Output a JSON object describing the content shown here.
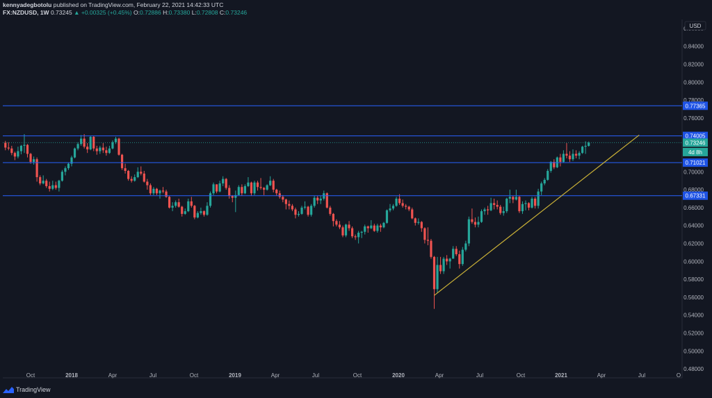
{
  "header": {
    "author": "kennyadegbotolu",
    "published": "published on TradingView.com, February 22, 2021 14:42:33 UTC",
    "symbol": "FX:NZDUSD, 1W",
    "last": "0.73245",
    "change": "▲ +0.00325 (+0.45%)",
    "o_label": "O:",
    "o": "0.72886",
    "h_label": "H:",
    "h": "0.73380",
    "l_label": "L:",
    "l": "0.72808",
    "c_label": "C:",
    "c": "0.73246"
  },
  "footer": {
    "brand": "TradingView"
  },
  "chart_data": {
    "type": "candlestick",
    "currency": "USD",
    "ylim": [
      0.47,
      0.87
    ],
    "y_ticks": [
      "0.48000",
      "0.50000",
      "0.52000",
      "0.54000",
      "0.56000",
      "0.58000",
      "0.60000",
      "0.62000",
      "0.64000",
      "0.66000",
      "0.68000",
      "0.70000",
      "0.72000",
      "0.74000",
      "0.76000",
      "0.78000",
      "0.80000",
      "0.82000",
      "0.84000",
      "0.86000"
    ],
    "x_ticks": [
      "Oct",
      "2018",
      "Apr",
      "Jul",
      "Oct",
      "2019",
      "Apr",
      "Jul",
      "Oct",
      "2020",
      "Apr",
      "Jul",
      "Oct",
      "2021",
      "Apr",
      "Jul",
      "O"
    ],
    "horizontal_levels": [
      "0.77365",
      "0.74005",
      "0.71021",
      "0.67331"
    ],
    "last_price_label": "0.73246",
    "countdown_label": "4d 8h",
    "trendline": {
      "from": [
        "2020-03-16",
        0.562
      ],
      "to": [
        "2021-06-14",
        0.741
      ]
    },
    "colors": {
      "up": "#26a69a",
      "down": "#ef5350",
      "level": "#2962ff",
      "trend": "#c9b037",
      "background": "#131722"
    },
    "candles": [
      [
        "2017-08-07",
        0.7325,
        0.7345,
        0.724,
        0.727
      ],
      [
        "2017-08-14",
        0.727,
        0.733,
        0.724,
        0.726
      ],
      [
        "2017-08-21",
        0.726,
        0.729,
        0.7185,
        0.721
      ],
      [
        "2017-08-28",
        0.721,
        0.7225,
        0.713,
        0.717
      ],
      [
        "2017-09-04",
        0.717,
        0.728,
        0.715,
        0.723
      ],
      [
        "2017-09-11",
        0.723,
        0.73,
        0.7195,
        0.729
      ],
      [
        "2017-09-18",
        0.729,
        0.742,
        0.721,
        0.73
      ],
      [
        "2017-09-25",
        0.73,
        0.731,
        0.716,
        0.72
      ],
      [
        "2017-10-02",
        0.72,
        0.721,
        0.709,
        0.711
      ],
      [
        "2017-10-09",
        0.711,
        0.717,
        0.708,
        0.714
      ],
      [
        "2017-10-16",
        0.714,
        0.716,
        0.689,
        0.694
      ],
      [
        "2017-10-23",
        0.694,
        0.696,
        0.685,
        0.687
      ],
      [
        "2017-10-30",
        0.687,
        0.696,
        0.686,
        0.69
      ],
      [
        "2017-11-06",
        0.69,
        0.692,
        0.682,
        0.684
      ],
      [
        "2017-11-13",
        0.684,
        0.689,
        0.678,
        0.681
      ],
      [
        "2017-11-20",
        0.681,
        0.69,
        0.6795,
        0.685
      ],
      [
        "2017-11-27",
        0.685,
        0.689,
        0.68,
        0.682
      ],
      [
        "2017-12-04",
        0.682,
        0.691,
        0.678,
        0.69
      ],
      [
        "2017-12-11",
        0.69,
        0.702,
        0.689,
        0.7
      ],
      [
        "2017-12-18",
        0.7,
        0.706,
        0.696,
        0.704
      ],
      [
        "2017-12-25",
        0.704,
        0.71,
        0.702,
        0.709
      ],
      [
        "2018-01-01",
        0.709,
        0.718,
        0.706,
        0.716
      ],
      [
        "2018-01-08",
        0.716,
        0.727,
        0.715,
        0.726
      ],
      [
        "2018-01-15",
        0.726,
        0.733,
        0.724,
        0.731
      ],
      [
        "2018-01-22",
        0.731,
        0.741,
        0.729,
        0.737
      ],
      [
        "2018-01-29",
        0.737,
        0.742,
        0.726,
        0.728
      ],
      [
        "2018-02-05",
        0.728,
        0.732,
        0.721,
        0.725
      ],
      [
        "2018-02-12",
        0.725,
        0.74,
        0.724,
        0.739
      ],
      [
        "2018-02-19",
        0.739,
        0.74,
        0.723,
        0.726
      ],
      [
        "2018-02-26",
        0.726,
        0.729,
        0.719,
        0.723
      ],
      [
        "2018-03-05",
        0.723,
        0.729,
        0.72,
        0.727
      ],
      [
        "2018-03-12",
        0.727,
        0.732,
        0.721,
        0.724
      ],
      [
        "2018-03-19",
        0.724,
        0.728,
        0.718,
        0.721
      ],
      [
        "2018-03-26",
        0.721,
        0.729,
        0.72,
        0.726
      ],
      [
        "2018-04-02",
        0.726,
        0.735,
        0.725,
        0.733
      ],
      [
        "2018-04-09",
        0.733,
        0.739,
        0.731,
        0.737
      ],
      [
        "2018-04-16",
        0.737,
        0.738,
        0.718,
        0.719
      ],
      [
        "2018-04-23",
        0.719,
        0.72,
        0.702,
        0.704
      ],
      [
        "2018-04-30",
        0.704,
        0.709,
        0.698,
        0.701
      ],
      [
        "2018-05-07",
        0.701,
        0.702,
        0.69,
        0.692
      ],
      [
        "2018-05-14",
        0.692,
        0.695,
        0.688,
        0.69
      ],
      [
        "2018-05-21",
        0.69,
        0.697,
        0.689,
        0.694
      ],
      [
        "2018-05-28",
        0.694,
        0.705,
        0.693,
        0.7
      ],
      [
        "2018-06-04",
        0.7,
        0.706,
        0.696,
        0.698
      ],
      [
        "2018-06-11",
        0.698,
        0.701,
        0.688,
        0.689
      ],
      [
        "2018-06-18",
        0.689,
        0.692,
        0.68,
        0.685
      ],
      [
        "2018-06-25",
        0.685,
        0.687,
        0.674,
        0.676
      ],
      [
        "2018-07-02",
        0.676,
        0.683,
        0.674,
        0.681
      ],
      [
        "2018-07-09",
        0.681,
        0.682,
        0.674,
        0.676
      ],
      [
        "2018-07-16",
        0.676,
        0.68,
        0.67,
        0.679
      ],
      [
        "2018-07-23",
        0.679,
        0.683,
        0.676,
        0.678
      ],
      [
        "2018-07-30",
        0.678,
        0.68,
        0.671,
        0.672
      ],
      [
        "2018-08-06",
        0.672,
        0.673,
        0.659,
        0.66
      ],
      [
        "2018-08-13",
        0.66,
        0.666,
        0.656,
        0.662
      ],
      [
        "2018-08-20",
        0.662,
        0.668,
        0.66,
        0.666
      ],
      [
        "2018-08-27",
        0.666,
        0.67,
        0.66,
        0.661
      ],
      [
        "2018-09-03",
        0.661,
        0.662,
        0.65,
        0.653
      ],
      [
        "2018-09-10",
        0.653,
        0.659,
        0.652,
        0.656
      ],
      [
        "2018-09-17",
        0.656,
        0.67,
        0.655,
        0.667
      ],
      [
        "2018-09-24",
        0.667,
        0.672,
        0.66,
        0.662
      ],
      [
        "2018-10-01",
        0.662,
        0.663,
        0.647,
        0.649
      ],
      [
        "2018-10-08",
        0.649,
        0.656,
        0.648,
        0.654
      ],
      [
        "2018-10-15",
        0.654,
        0.66,
        0.652,
        0.656
      ],
      [
        "2018-10-22",
        0.656,
        0.657,
        0.65,
        0.652
      ],
      [
        "2018-10-29",
        0.652,
        0.666,
        0.651,
        0.662
      ],
      [
        "2018-11-05",
        0.662,
        0.678,
        0.66,
        0.676
      ],
      [
        "2018-11-12",
        0.676,
        0.688,
        0.674,
        0.686
      ],
      [
        "2018-11-19",
        0.686,
        0.686,
        0.676,
        0.678
      ],
      [
        "2018-11-26",
        0.678,
        0.69,
        0.677,
        0.687
      ],
      [
        "2018-12-03",
        0.687,
        0.695,
        0.684,
        0.692
      ],
      [
        "2018-12-10",
        0.692,
        0.693,
        0.68,
        0.682
      ],
      [
        "2018-12-17",
        0.682,
        0.685,
        0.67,
        0.673
      ],
      [
        "2018-12-24",
        0.673,
        0.674,
        0.666,
        0.671
      ],
      [
        "2018-12-31",
        0.671,
        0.679,
        0.655,
        0.674
      ],
      [
        "2019-01-07",
        0.674,
        0.685,
        0.674,
        0.683
      ],
      [
        "2019-01-14",
        0.683,
        0.686,
        0.673,
        0.676
      ],
      [
        "2019-01-21",
        0.676,
        0.686,
        0.675,
        0.684
      ],
      [
        "2019-01-28",
        0.684,
        0.694,
        0.683,
        0.688
      ],
      [
        "2019-02-04",
        0.688,
        0.689,
        0.673,
        0.676
      ],
      [
        "2019-02-11",
        0.676,
        0.69,
        0.674,
        0.688
      ],
      [
        "2019-02-18",
        0.688,
        0.69,
        0.679,
        0.683
      ],
      [
        "2019-02-25",
        0.683,
        0.693,
        0.68,
        0.682
      ],
      [
        "2019-03-04",
        0.682,
        0.683,
        0.674,
        0.68
      ],
      [
        "2019-03-11",
        0.68,
        0.686,
        0.679,
        0.685
      ],
      [
        "2019-03-18",
        0.685,
        0.695,
        0.684,
        0.69
      ],
      [
        "2019-03-25",
        0.69,
        0.692,
        0.677,
        0.68
      ],
      [
        "2019-04-01",
        0.68,
        0.681,
        0.673,
        0.676
      ],
      [
        "2019-04-08",
        0.676,
        0.679,
        0.67,
        0.672
      ],
      [
        "2019-04-15",
        0.672,
        0.674,
        0.666,
        0.669
      ],
      [
        "2019-04-22",
        0.669,
        0.67,
        0.658,
        0.664
      ],
      [
        "2019-04-29",
        0.664,
        0.668,
        0.658,
        0.662
      ],
      [
        "2019-05-06",
        0.662,
        0.664,
        0.656,
        0.658
      ],
      [
        "2019-05-13",
        0.658,
        0.66,
        0.648,
        0.652
      ],
      [
        "2019-05-20",
        0.652,
        0.656,
        0.65,
        0.653
      ],
      [
        "2019-05-27",
        0.653,
        0.662,
        0.652,
        0.66
      ],
      [
        "2019-06-03",
        0.66,
        0.667,
        0.658,
        0.661
      ],
      [
        "2019-06-10",
        0.661,
        0.662,
        0.65,
        0.652
      ],
      [
        "2019-06-17",
        0.652,
        0.664,
        0.65,
        0.662
      ],
      [
        "2019-06-24",
        0.662,
        0.673,
        0.66,
        0.671
      ],
      [
        "2019-07-01",
        0.671,
        0.673,
        0.664,
        0.668
      ],
      [
        "2019-07-08",
        0.668,
        0.673,
        0.664,
        0.67
      ],
      [
        "2019-07-15",
        0.67,
        0.679,
        0.668,
        0.676
      ],
      [
        "2019-07-22",
        0.676,
        0.677,
        0.659,
        0.66
      ],
      [
        "2019-07-29",
        0.66,
        0.662,
        0.651,
        0.653
      ],
      [
        "2019-08-05",
        0.653,
        0.654,
        0.639,
        0.645
      ],
      [
        "2019-08-12",
        0.645,
        0.647,
        0.639,
        0.641
      ],
      [
        "2019-08-19",
        0.641,
        0.645,
        0.636,
        0.638
      ],
      [
        "2019-08-26",
        0.638,
        0.64,
        0.627,
        0.629
      ],
      [
        "2019-09-02",
        0.629,
        0.642,
        0.627,
        0.641
      ],
      [
        "2019-09-09",
        0.641,
        0.645,
        0.634,
        0.637
      ],
      [
        "2019-09-16",
        0.637,
        0.639,
        0.626,
        0.628
      ],
      [
        "2019-09-23",
        0.628,
        0.63,
        0.624,
        0.627
      ],
      [
        "2019-09-30",
        0.627,
        0.634,
        0.62,
        0.632
      ],
      [
        "2019-10-07",
        0.632,
        0.634,
        0.626,
        0.633
      ],
      [
        "2019-10-14",
        0.633,
        0.641,
        0.63,
        0.639
      ],
      [
        "2019-10-21",
        0.639,
        0.64,
        0.632,
        0.637
      ],
      [
        "2019-10-28",
        0.637,
        0.646,
        0.636,
        0.64
      ],
      [
        "2019-11-04",
        0.64,
        0.642,
        0.633,
        0.634
      ],
      [
        "2019-11-11",
        0.634,
        0.642,
        0.632,
        0.64
      ],
      [
        "2019-11-18",
        0.64,
        0.642,
        0.633,
        0.638
      ],
      [
        "2019-11-25",
        0.638,
        0.644,
        0.637,
        0.643
      ],
      [
        "2019-12-02",
        0.643,
        0.658,
        0.642,
        0.657
      ],
      [
        "2019-12-09",
        0.657,
        0.664,
        0.655,
        0.659
      ],
      [
        "2019-12-16",
        0.659,
        0.664,
        0.657,
        0.662
      ],
      [
        "2019-12-23",
        0.662,
        0.672,
        0.661,
        0.67
      ],
      [
        "2019-12-30",
        0.67,
        0.675,
        0.663,
        0.665
      ],
      [
        "2020-01-06",
        0.665,
        0.669,
        0.66,
        0.662
      ],
      [
        "2020-01-13",
        0.662,
        0.664,
        0.658,
        0.661
      ],
      [
        "2020-01-20",
        0.661,
        0.662,
        0.656,
        0.658
      ],
      [
        "2020-01-27",
        0.658,
        0.66,
        0.647,
        0.648
      ],
      [
        "2020-02-03",
        0.648,
        0.649,
        0.64,
        0.643
      ],
      [
        "2020-02-10",
        0.643,
        0.648,
        0.641,
        0.644
      ],
      [
        "2020-02-17",
        0.644,
        0.645,
        0.633,
        0.637
      ],
      [
        "2020-02-24",
        0.637,
        0.638,
        0.62,
        0.624
      ],
      [
        "2020-03-02",
        0.624,
        0.638,
        0.618,
        0.623
      ],
      [
        "2020-03-09",
        0.623,
        0.625,
        0.603,
        0.605
      ],
      [
        "2020-03-16",
        0.605,
        0.606,
        0.547,
        0.569
      ],
      [
        "2020-03-23",
        0.569,
        0.605,
        0.565,
        0.596
      ],
      [
        "2020-03-30",
        0.596,
        0.605,
        0.586,
        0.589
      ],
      [
        "2020-04-06",
        0.589,
        0.605,
        0.586,
        0.603
      ],
      [
        "2020-04-13",
        0.603,
        0.607,
        0.596,
        0.6
      ],
      [
        "2020-04-20",
        0.6,
        0.604,
        0.592,
        0.603
      ],
      [
        "2020-04-27",
        0.603,
        0.617,
        0.603,
        0.614
      ],
      [
        "2020-05-04",
        0.614,
        0.617,
        0.606,
        0.608
      ],
      [
        "2020-05-11",
        0.608,
        0.612,
        0.592,
        0.597
      ],
      [
        "2020-05-18",
        0.597,
        0.616,
        0.595,
        0.613
      ],
      [
        "2020-05-25",
        0.613,
        0.623,
        0.611,
        0.62
      ],
      [
        "2020-06-01",
        0.62,
        0.65,
        0.617,
        0.647
      ],
      [
        "2020-06-08",
        0.647,
        0.659,
        0.642,
        0.644
      ],
      [
        "2020-06-15",
        0.644,
        0.649,
        0.638,
        0.641
      ],
      [
        "2020-06-22",
        0.641,
        0.65,
        0.638,
        0.644
      ],
      [
        "2020-06-29",
        0.644,
        0.658,
        0.643,
        0.656
      ],
      [
        "2020-07-06",
        0.656,
        0.66,
        0.652,
        0.658
      ],
      [
        "2020-07-13",
        0.658,
        0.662,
        0.652,
        0.657
      ],
      [
        "2020-07-20",
        0.657,
        0.671,
        0.656,
        0.665
      ],
      [
        "2020-07-27",
        0.665,
        0.67,
        0.658,
        0.663
      ],
      [
        "2020-08-03",
        0.663,
        0.668,
        0.658,
        0.661
      ],
      [
        "2020-08-10",
        0.661,
        0.663,
        0.652,
        0.654
      ],
      [
        "2020-08-17",
        0.654,
        0.661,
        0.651,
        0.656
      ],
      [
        "2020-08-24",
        0.656,
        0.671,
        0.654,
        0.67
      ],
      [
        "2020-08-31",
        0.67,
        0.68,
        0.665,
        0.672
      ],
      [
        "2020-09-07",
        0.672,
        0.673,
        0.665,
        0.669
      ],
      [
        "2020-09-14",
        0.669,
        0.68,
        0.668,
        0.672
      ],
      [
        "2020-09-21",
        0.672,
        0.673,
        0.654,
        0.656
      ],
      [
        "2020-09-28",
        0.656,
        0.667,
        0.653,
        0.664
      ],
      [
        "2020-10-05",
        0.664,
        0.668,
        0.657,
        0.665
      ],
      [
        "2020-10-12",
        0.665,
        0.666,
        0.657,
        0.66
      ],
      [
        "2020-10-19",
        0.66,
        0.672,
        0.659,
        0.67
      ],
      [
        "2020-10-26",
        0.67,
        0.672,
        0.659,
        0.662
      ],
      [
        "2020-11-02",
        0.662,
        0.681,
        0.659,
        0.678
      ],
      [
        "2020-11-09",
        0.678,
        0.689,
        0.674,
        0.687
      ],
      [
        "2020-11-16",
        0.687,
        0.693,
        0.685,
        0.691
      ],
      [
        "2020-11-23",
        0.691,
        0.703,
        0.69,
        0.701
      ],
      [
        "2020-11-30",
        0.701,
        0.712,
        0.699,
        0.711
      ],
      [
        "2020-12-07",
        0.711,
        0.714,
        0.703,
        0.705
      ],
      [
        "2020-12-14",
        0.705,
        0.717,
        0.704,
        0.716
      ],
      [
        "2020-12-21",
        0.716,
        0.72,
        0.706,
        0.711
      ],
      [
        "2020-12-28",
        0.711,
        0.724,
        0.71,
        0.72
      ],
      [
        "2021-01-04",
        0.72,
        0.732,
        0.715,
        0.718
      ],
      [
        "2021-01-11",
        0.718,
        0.723,
        0.711,
        0.714
      ],
      [
        "2021-01-18",
        0.714,
        0.725,
        0.712,
        0.72
      ],
      [
        "2021-01-25",
        0.72,
        0.724,
        0.715,
        0.718
      ],
      [
        "2021-02-01",
        0.718,
        0.723,
        0.714,
        0.721
      ],
      [
        "2021-02-08",
        0.721,
        0.729,
        0.72,
        0.728
      ],
      [
        "2021-02-15",
        0.728,
        0.734,
        0.72,
        0.729
      ],
      [
        "2021-02-22",
        0.7289,
        0.7338,
        0.7281,
        0.7325
      ]
    ]
  }
}
